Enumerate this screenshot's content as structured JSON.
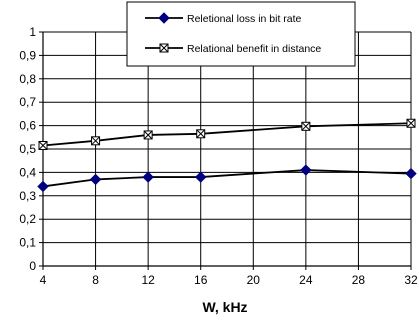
{
  "chart_data": {
    "type": "line",
    "title": "",
    "xlabel": "W, kHz",
    "ylabel": "",
    "xlim": [
      4,
      32
    ],
    "ylim": [
      0,
      1
    ],
    "x_ticks": [
      "4",
      "8",
      "12",
      "16",
      "20",
      "24",
      "28",
      "32"
    ],
    "y_ticks": [
      "0",
      "0,1",
      "0,2",
      "0,3",
      "0,4",
      "0,5",
      "0,6",
      "0,7",
      "0,8",
      "0,9",
      "1"
    ],
    "grid": true,
    "legend_position": "top-right",
    "series": [
      {
        "name": "Reletional loss in bit rate",
        "marker": "diamond",
        "color": "#000080",
        "x": [
          4,
          8,
          12,
          16,
          24,
          32
        ],
        "y": [
          0.34,
          0.37,
          0.38,
          0.38,
          0.41,
          0.395
        ]
      },
      {
        "name": "Relational benefit in distance",
        "marker": "x-box",
        "color": "#000000",
        "x": [
          4,
          8,
          12,
          16,
          24,
          32
        ],
        "y": [
          0.515,
          0.535,
          0.56,
          0.565,
          0.597,
          0.61
        ]
      }
    ]
  }
}
